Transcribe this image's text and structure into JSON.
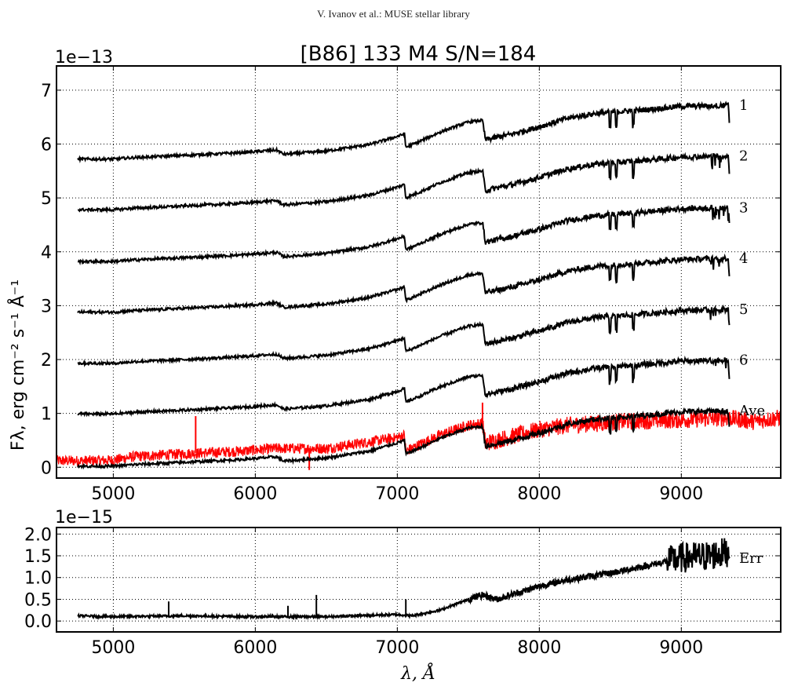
{
  "header": {
    "text": "V. Ivanov et al.: MUSE stellar library"
  },
  "chart_data": [
    {
      "type": "line",
      "title": "[B86] 133  M4  S/N=184",
      "offset_label": "1e−13",
      "ylabel": "Fλ, erg cm⁻² s⁻¹ Å⁻¹",
      "xlim": [
        4600,
        9700
      ],
      "ylim": [
        -0.2,
        7.45
      ],
      "grid": true,
      "xticks": [
        5000,
        6000,
        7000,
        8000,
        9000
      ],
      "yticks": [
        0,
        1,
        2,
        3,
        4,
        5,
        6,
        7
      ],
      "template_shape": {
        "x": [
          4750,
          5000,
          5150,
          5500,
          5900,
          6150,
          6200,
          6500,
          6800,
          7000,
          7050,
          7060,
          7150,
          7300,
          7500,
          7600,
          7620,
          7800,
          8000,
          8200,
          8400,
          8600,
          8800,
          9000,
          9200,
          9330,
          9340
        ],
        "relative_flux": [
          0.0,
          0.0,
          0.03,
          0.07,
          0.12,
          0.17,
          0.09,
          0.15,
          0.27,
          0.42,
          0.47,
          0.22,
          0.32,
          0.5,
          0.69,
          0.72,
          0.36,
          0.46,
          0.6,
          0.76,
          0.85,
          0.89,
          0.93,
          0.98,
          0.99,
          1.0,
          0.62
        ]
      },
      "series": [
        {
          "name": "1",
          "color": "#000000",
          "start": 5.72,
          "top": 6.72
        },
        {
          "name": "2",
          "color": "#000000",
          "start": 4.78,
          "top": 5.78
        },
        {
          "name": "3",
          "color": "#000000",
          "start": 3.82,
          "top": 4.82
        },
        {
          "name": "4",
          "color": "#000000",
          "start": 2.88,
          "top": 3.88
        },
        {
          "name": "5",
          "color": "#000000",
          "start": 1.93,
          "top": 2.93
        },
        {
          "name": "6",
          "color": "#000000",
          "start": 0.99,
          "top": 1.99
        },
        {
          "name": "Ave",
          "color": "#000000",
          "start": 0.02,
          "top": 1.05
        }
      ],
      "noisy_series": {
        "color": "#ff0000",
        "x_range": [
          4600,
          9700
        ],
        "x": [
          4600,
          4750,
          5000,
          5150,
          5500,
          5900,
          6150,
          6500,
          7000,
          7050,
          7060,
          7300,
          7500,
          7600,
          7620,
          8000,
          8200,
          8600,
          9000,
          9330,
          9500,
          9700
        ],
        "y": [
          0.12,
          0.12,
          0.13,
          0.2,
          0.25,
          0.3,
          0.35,
          0.35,
          0.55,
          0.6,
          0.3,
          0.6,
          0.78,
          0.82,
          0.45,
          0.7,
          0.78,
          0.85,
          0.88,
          0.92,
          0.85,
          0.92
        ]
      },
      "spikes": [
        {
          "x": 5580,
          "y": 0.95
        },
        {
          "x": 7600,
          "y": 1.2
        },
        {
          "x": 6380,
          "y": -0.05
        }
      ]
    },
    {
      "type": "line",
      "offset_label": "1e−15",
      "xlim": [
        4600,
        9700
      ],
      "ylim": [
        -0.25,
        2.15
      ],
      "grid": true,
      "xticks": [
        5000,
        6000,
        7000,
        8000,
        9000
      ],
      "ytick_labels": [
        "0.0",
        "0.5",
        "1.0",
        "1.5",
        "2.0"
      ],
      "yticks": [
        0.0,
        0.5,
        1.0,
        1.5,
        2.0
      ],
      "xlabel": "λ, Å",
      "series": [
        {
          "name": "Err",
          "color": "#000000",
          "x": [
            4750,
            5000,
            5500,
            6000,
            6500,
            7000,
            7100,
            7300,
            7500,
            7600,
            7700,
            8000,
            8200,
            8500,
            8800,
            9000,
            9200,
            9340
          ],
          "y": [
            0.12,
            0.1,
            0.12,
            0.1,
            0.1,
            0.15,
            0.12,
            0.25,
            0.5,
            0.6,
            0.5,
            0.8,
            0.95,
            1.1,
            1.3,
            1.45,
            1.5,
            1.6
          ]
        }
      ],
      "spikes": [
        {
          "x": 5390,
          "y": 0.45
        },
        {
          "x": 6230,
          "y": 0.35
        },
        {
          "x": 6430,
          "y": 0.6
        },
        {
          "x": 7060,
          "y": 0.5
        }
      ]
    }
  ]
}
